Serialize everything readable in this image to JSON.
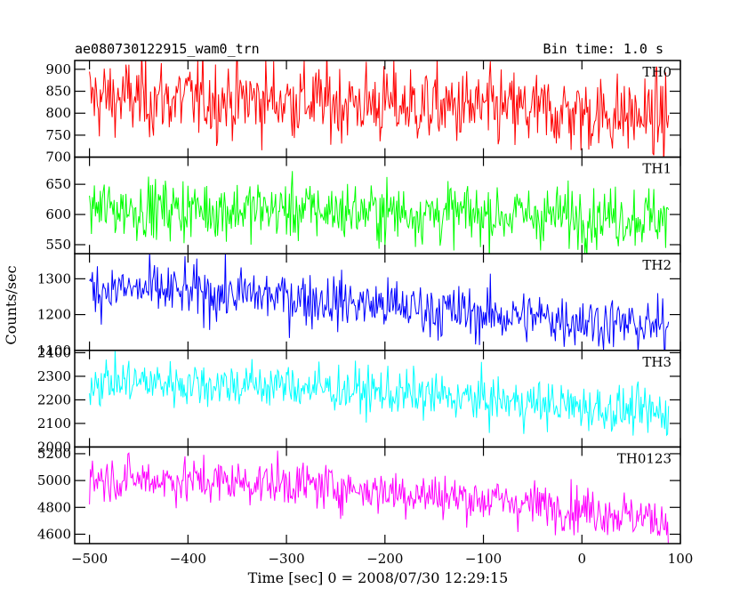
{
  "header": {
    "title": "ae080730122915_wam0_trn",
    "bin_time": "Bin time: 1.0 s"
  },
  "chart_data": {
    "type": "line",
    "grid": false,
    "xlabel": "Time [sec] 0 = 2008/07/30 12:29:15",
    "ylabel": "Counts/sec",
    "xlim": [
      -515,
      100
    ],
    "x_ticks": [
      -500,
      -400,
      -300,
      -200,
      -100,
      0,
      100
    ],
    "x_tick_labels": [
      "−500",
      "−400",
      "−300",
      "−200",
      "−100",
      "0",
      "100"
    ],
    "x_range": [
      -500,
      88
    ],
    "bin_time_s": 1.0,
    "panels": [
      {
        "name": "TH0",
        "color": "#ff0000",
        "ylim": [
          700,
          920
        ],
        "y_ticks": [
          700,
          750,
          800,
          850,
          900
        ],
        "trend": [
          [
            -500,
            835
          ],
          [
            -300,
            830
          ],
          [
            -100,
            810
          ],
          [
            0,
            800
          ],
          [
            88,
            790
          ]
        ],
        "noise_sd": 45
      },
      {
        "name": "TH1",
        "color": "#00ff00",
        "ylim": [
          535,
          695
        ],
        "y_ticks": [
          550,
          600,
          650
        ],
        "trend": [
          [
            -500,
            610
          ],
          [
            -300,
            608
          ],
          [
            -100,
            600
          ],
          [
            88,
            595
          ]
        ],
        "noise_sd": 25
      },
      {
        "name": "TH2",
        "color": "#0000ff",
        "ylim": [
          1100,
          1370
        ],
        "y_ticks": [
          1100,
          1200,
          1300
        ],
        "trend": [
          [
            -500,
            1275
          ],
          [
            -300,
            1250
          ],
          [
            -100,
            1200
          ],
          [
            0,
            1185
          ],
          [
            88,
            1160
          ]
        ],
        "noise_sd": 38
      },
      {
        "name": "TH3",
        "color": "#00ffff",
        "ylim": [
          2000,
          2410
        ],
        "y_ticks": [
          2000,
          2100,
          2200,
          2300,
          2400
        ],
        "trend": [
          [
            -500,
            2280
          ],
          [
            -300,
            2260
          ],
          [
            -100,
            2200
          ],
          [
            0,
            2170
          ],
          [
            88,
            2140
          ]
        ],
        "noise_sd": 50
      },
      {
        "name": "TH0123",
        "color": "#ff00ff",
        "ylim": [
          4530,
          5250
        ],
        "y_ticks": [
          4600,
          4800,
          5000,
          5200
        ],
        "trend": [
          [
            -500,
            5020
          ],
          [
            -300,
            4980
          ],
          [
            -100,
            4860
          ],
          [
            0,
            4790
          ],
          [
            88,
            4700
          ]
        ],
        "noise_sd": 85
      }
    ]
  }
}
